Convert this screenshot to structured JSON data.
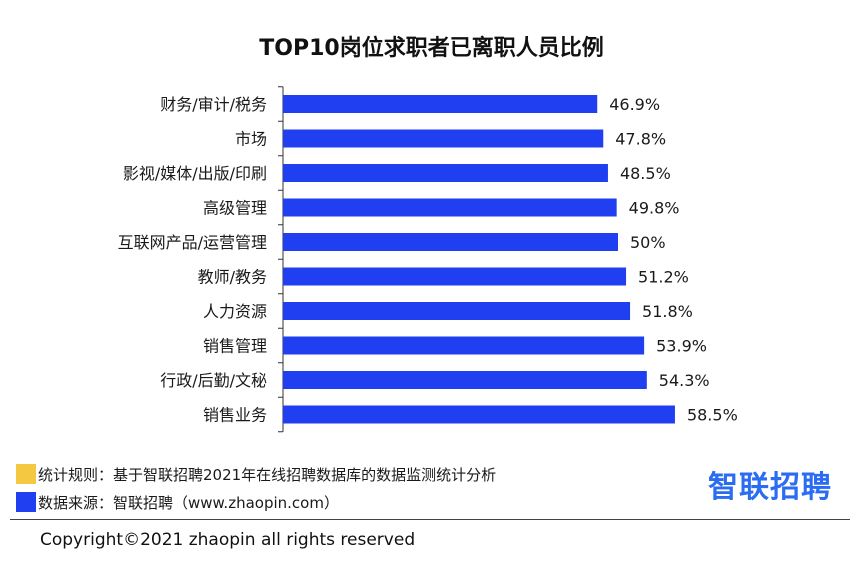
{
  "chart_data": {
    "type": "bar",
    "orientation": "horizontal",
    "title": "TOP10岗位求职者已离职人员比例",
    "categories": [
      "财务/审计/税务",
      "市场",
      "影视/媒体/出版/印刷",
      "高级管理",
      "互联网产品/运营管理",
      "教师/教务",
      "人力资源",
      "销售管理",
      "行政/后勤/文秘",
      "销售业务"
    ],
    "values": [
      46.9,
      47.8,
      48.5,
      49.8,
      50,
      51.2,
      51.8,
      53.9,
      54.3,
      58.5
    ],
    "value_labels": [
      "46.9%",
      "47.8%",
      "48.5%",
      "49.8%",
      "50%",
      "51.2%",
      "51.8%",
      "53.9%",
      "54.3%",
      "58.5%"
    ],
    "xlim": [
      0,
      100
    ],
    "grid": false,
    "bar_color": "#1f3ff0"
  },
  "notes": {
    "rule_text": "统计规则：基于智联招聘2021年在线招聘数据库的数据监测统计分析",
    "rule_color": "#f5c842",
    "source_text": "数据来源：智联招聘（www.zhaopin.com）",
    "source_color": "#1f3ff0"
  },
  "brand": {
    "text": "智联招聘",
    "color": "#2a6cf2"
  },
  "footer": {
    "copyright": "Copyright©2021 zhaopin all rights reserved"
  }
}
